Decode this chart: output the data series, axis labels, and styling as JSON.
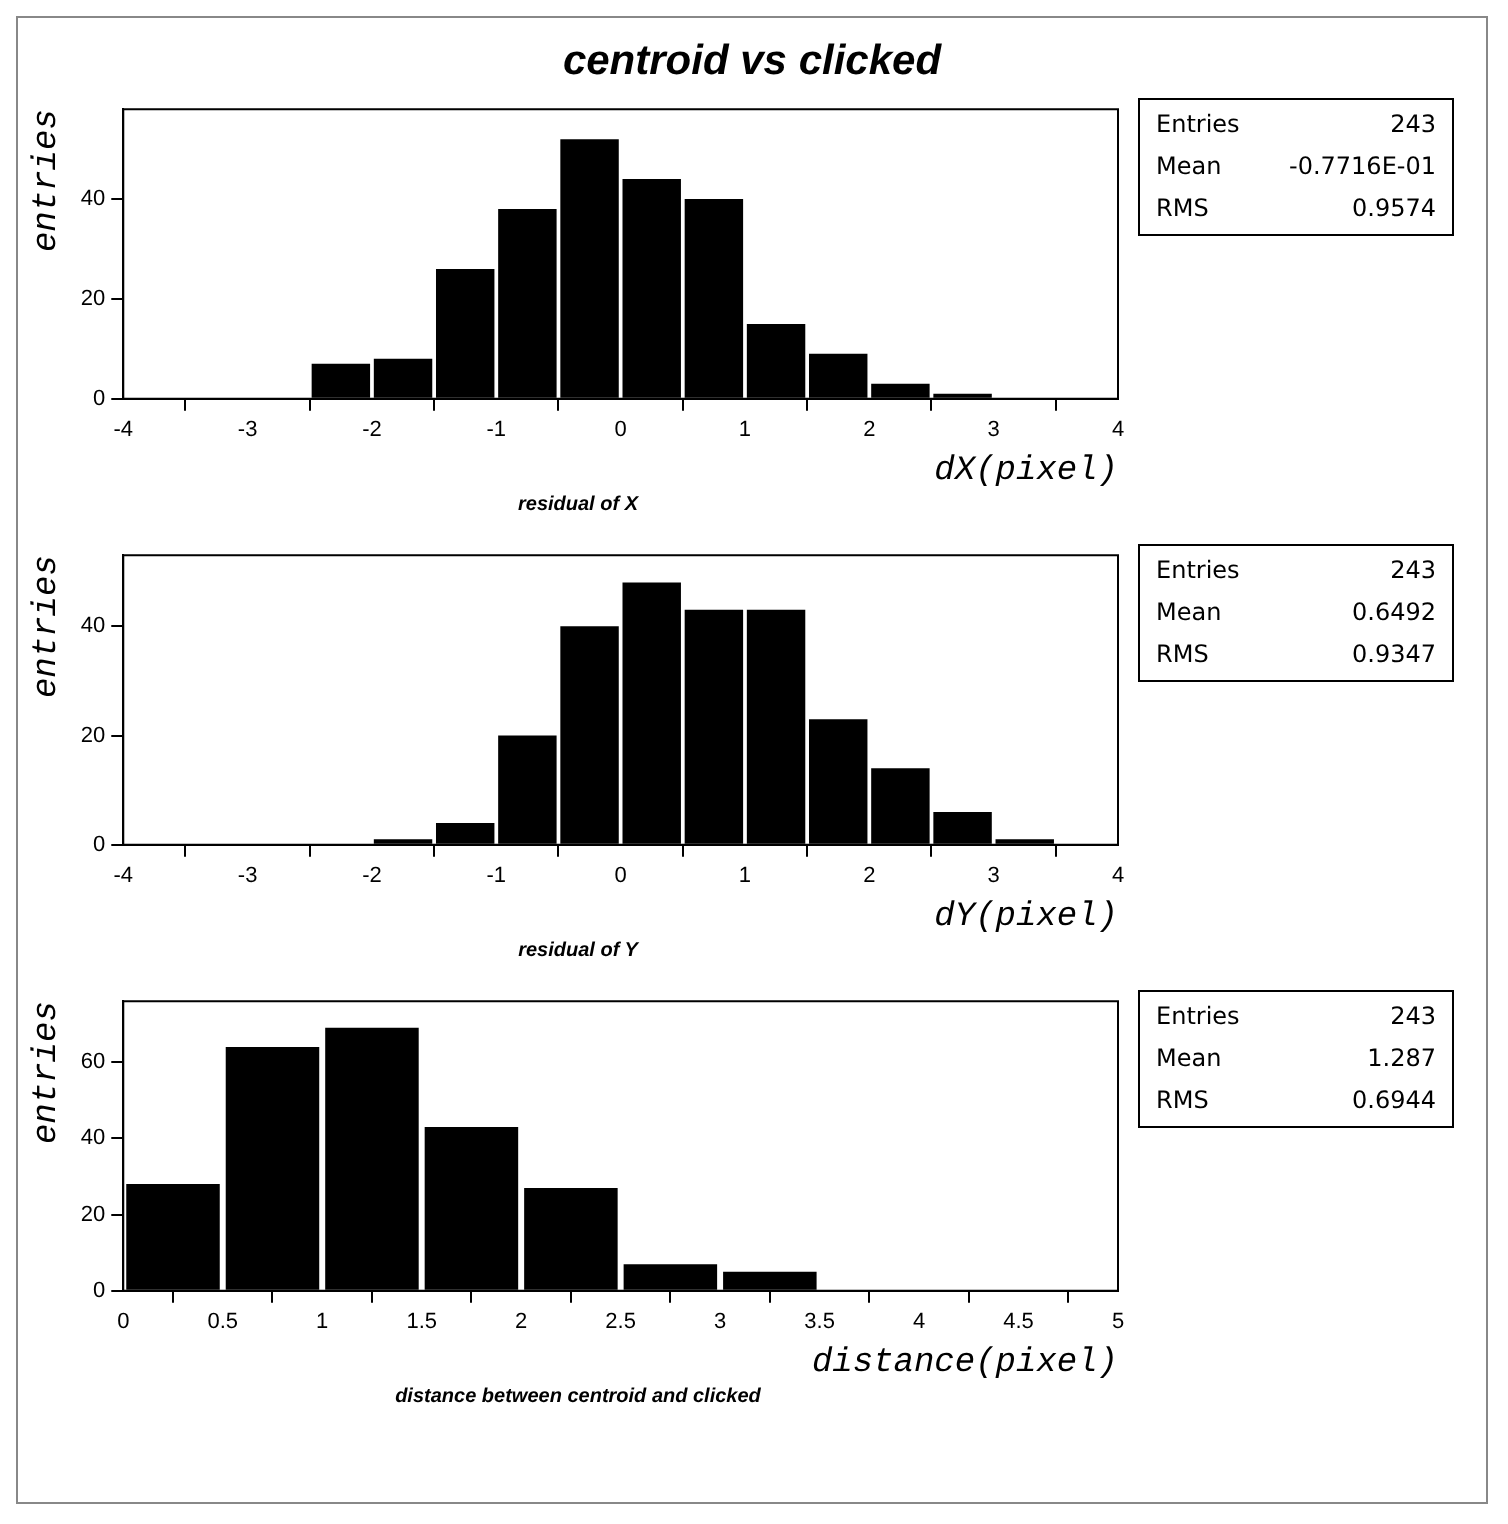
{
  "chart_data": [
    {
      "type": "histogram",
      "title": "centroid vs clicked",
      "subtitle": "residual of X",
      "xlabel": "dX(pixel)",
      "ylabel": "entries",
      "color": "#000000",
      "bins": [
        -4,
        -3.5,
        -3,
        -2.5,
        -2,
        -1.5,
        -1,
        -0.5,
        0,
        0.5,
        1,
        1.5,
        2,
        2.5,
        3,
        3.5,
        4
      ],
      "values": [
        0,
        0,
        0,
        7,
        8,
        26,
        38,
        52,
        44,
        40,
        15,
        9,
        3,
        1,
        0,
        0
      ],
      "xlim": [
        -4,
        4
      ],
      "xticks": [
        -4,
        -3,
        -2,
        -1,
        0,
        1,
        2,
        3,
        4
      ],
      "ylim": [
        0,
        58
      ],
      "yticks": [
        0,
        20,
        40
      ],
      "grid": false,
      "legend": false,
      "annotations": [
        "Entries",
        "243",
        "Mean",
        "-0.7716E-01",
        "RMS",
        "0.9574"
      ]
    },
    {
      "type": "histogram",
      "subtitle": "residual of Y",
      "xlabel": "dY(pixel)",
      "ylabel": "entries",
      "color": "#000000",
      "bins": [
        -4,
        -3.5,
        -3,
        -2.5,
        -2,
        -1.5,
        -1,
        -0.5,
        0,
        0.5,
        1,
        1.5,
        2,
        2.5,
        3,
        3.5,
        4
      ],
      "values": [
        0,
        0,
        0,
        0,
        1,
        4,
        20,
        40,
        48,
        43,
        43,
        23,
        14,
        6,
        1,
        0
      ],
      "xlim": [
        -4,
        4
      ],
      "xticks": [
        -4,
        -3,
        -2,
        -1,
        0,
        1,
        2,
        3,
        4
      ],
      "ylim": [
        0,
        53
      ],
      "yticks": [
        0,
        20,
        40
      ],
      "grid": false,
      "legend": false,
      "annotations": [
        "Entries",
        "243",
        "Mean",
        "0.6492",
        "RMS",
        "0.9347"
      ]
    },
    {
      "type": "histogram",
      "subtitle": "distance between centroid and clicked",
      "xlabel": "distance(pixel)",
      "ylabel": "entries",
      "color": "#000000",
      "bins": [
        0,
        0.5,
        1,
        1.5,
        2,
        2.5,
        3,
        3.5,
        4,
        4.5,
        5
      ],
      "values": [
        28,
        64,
        69,
        43,
        27,
        7,
        5,
        0,
        0,
        0
      ],
      "xlim": [
        0,
        5
      ],
      "xticks": [
        0,
        0.5,
        1,
        1.5,
        2,
        2.5,
        3,
        3.5,
        4,
        4.5,
        5
      ],
      "ylim": [
        0,
        76
      ],
      "yticks": [
        0,
        20,
        40,
        60
      ],
      "grid": false,
      "legend": false,
      "annotations": [
        "Entries",
        "243",
        "Mean",
        "1.287",
        "RMS",
        "0.6944"
      ]
    }
  ]
}
